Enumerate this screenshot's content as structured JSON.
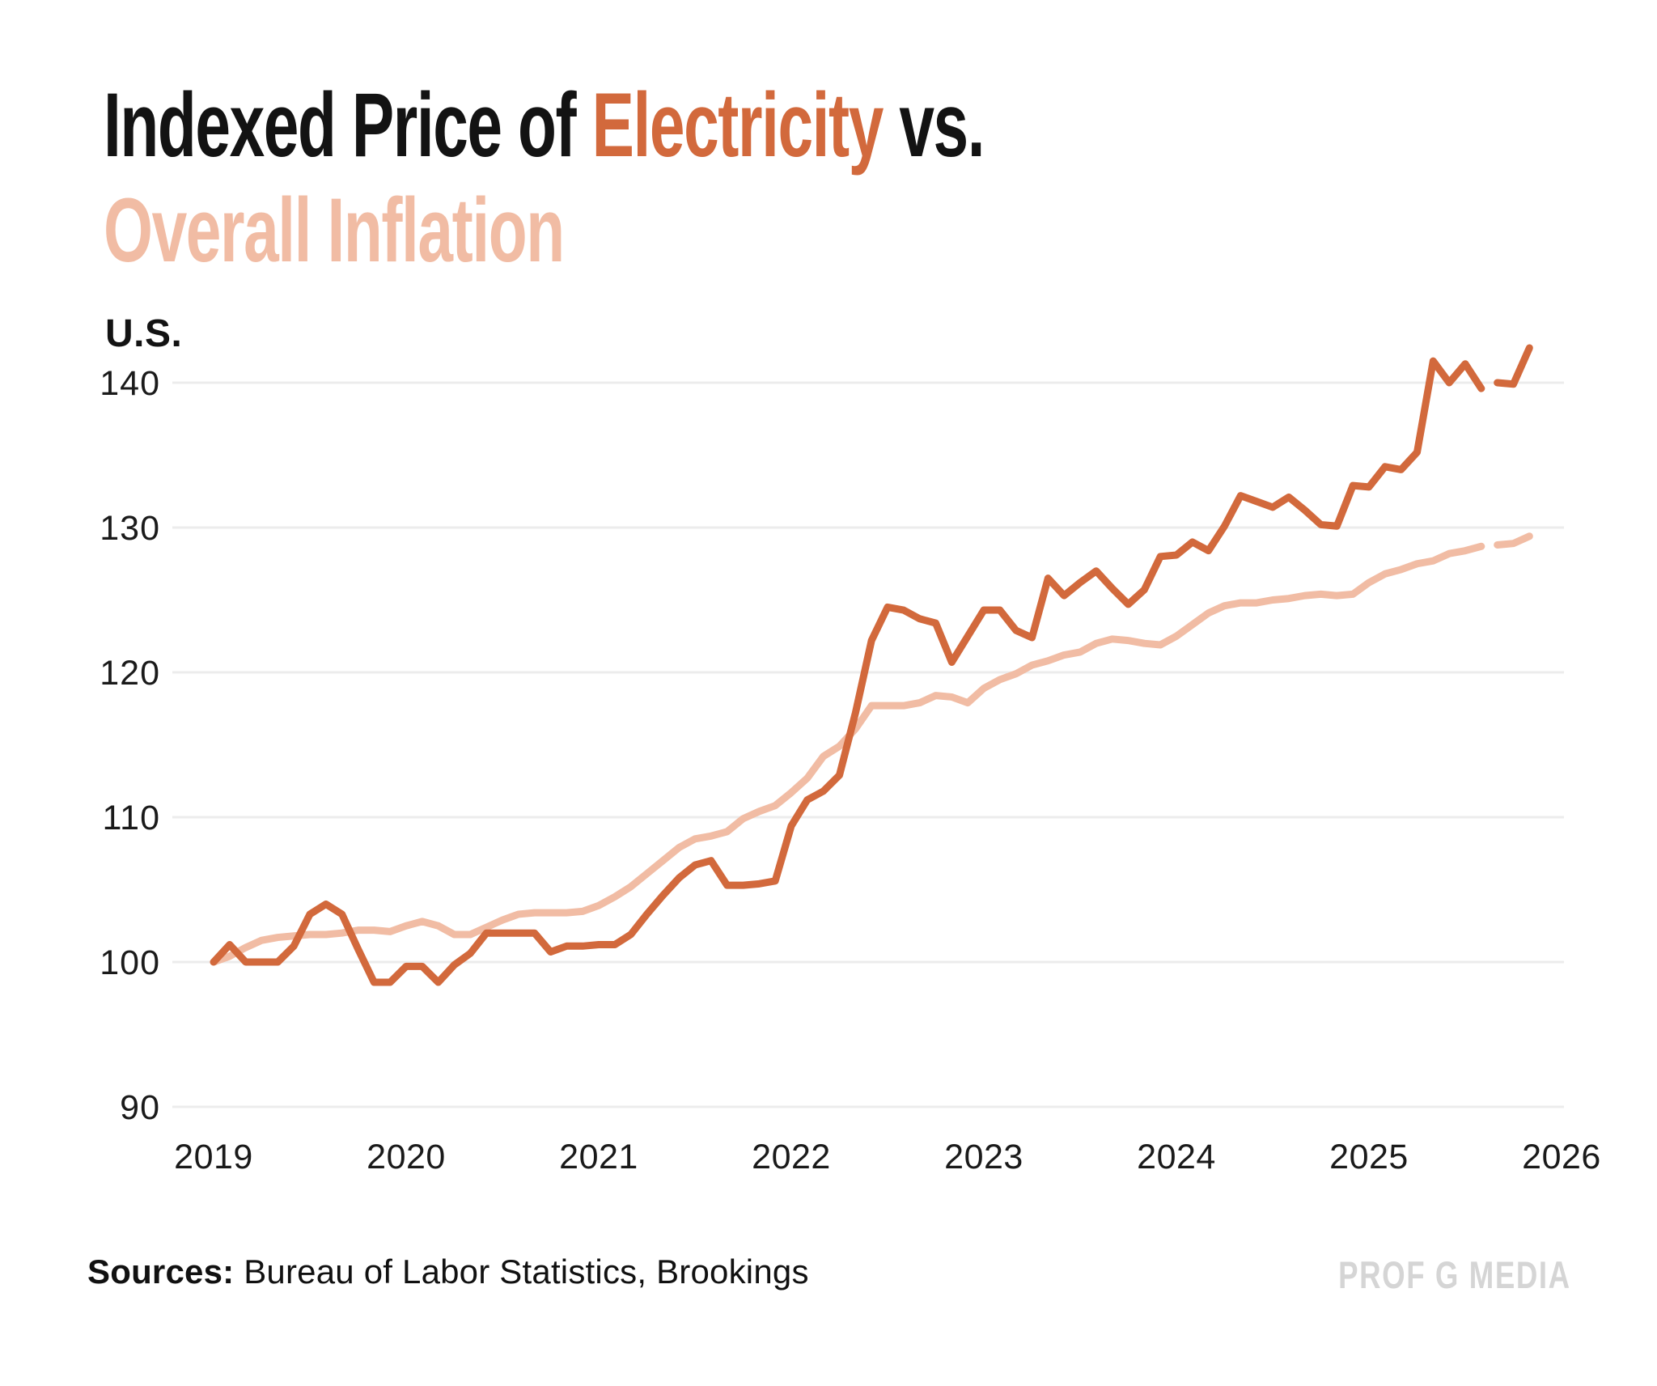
{
  "title": {
    "line1_prefix": "Indexed Price of ",
    "line1_highlight": "Electricity",
    "line1_suffix": " vs.",
    "line2": "Overall Inflation"
  },
  "region_label": "U.S.",
  "source_note": {
    "label": "Sources:",
    "text": " Bureau of Labor Statistics, Brookings"
  },
  "watermark": "PROF G MEDIA",
  "colors": {
    "electricity": "#d2693c",
    "inflation": "#f1bca4",
    "grid": "#ececec",
    "text": "#1a1a1a",
    "watermark": "#d5d5d5"
  },
  "chart_data": {
    "type": "line",
    "title": "Indexed Price of Electricity vs. Overall Inflation",
    "region": "U.S.",
    "grid": true,
    "legend_position": "none (color-coded title)",
    "x_axis": {
      "tick_labels": [
        "2019",
        "2020",
        "2021",
        "2022",
        "2023",
        "2024",
        "2025",
        "2026"
      ],
      "start": "2019-01",
      "frequency": "monthly"
    },
    "y_axis": {
      "ticks": [
        90,
        100,
        110,
        120,
        130,
        140
      ],
      "range": [
        87,
        145
      ]
    },
    "series": [
      {
        "name": "Overall Inflation",
        "color": "#f1bca4",
        "values": [
          100.0,
          100.4,
          101.0,
          101.5,
          101.7,
          101.8,
          101.9,
          101.9,
          102.0,
          102.2,
          102.2,
          102.1,
          102.5,
          102.8,
          102.5,
          101.9,
          101.9,
          102.4,
          102.9,
          103.3,
          103.4,
          103.4,
          103.4,
          103.5,
          103.9,
          104.5,
          105.2,
          106.1,
          107.0,
          107.9,
          108.5,
          108.7,
          109.0,
          109.9,
          110.4,
          110.8,
          111.7,
          112.7,
          114.2,
          114.9,
          116.1,
          117.7,
          117.7,
          117.7,
          117.9,
          118.4,
          118.3,
          117.9,
          118.9,
          119.5,
          119.9,
          120.5,
          120.8,
          121.2,
          121.4,
          122.0,
          122.3,
          122.2,
          122.0,
          121.9,
          122.5,
          123.3,
          124.1,
          124.6,
          124.8,
          124.8,
          125.0,
          125.1,
          125.3,
          125.4,
          125.3,
          125.4,
          126.2,
          126.8,
          127.1,
          127.5,
          127.7,
          128.2,
          128.4,
          128.7
        ],
        "detached_tail_values": [
          128.8,
          128.9,
          129.4
        ]
      },
      {
        "name": "Electricity",
        "color": "#d2693c",
        "values": [
          100.0,
          101.2,
          100.0,
          100.0,
          100.0,
          101.1,
          103.3,
          104.0,
          103.3,
          100.9,
          98.6,
          98.6,
          99.7,
          99.7,
          98.6,
          99.8,
          100.6,
          102.0,
          102.0,
          102.0,
          102.0,
          100.7,
          101.1,
          101.1,
          101.2,
          101.2,
          101.9,
          103.3,
          104.6,
          105.8,
          106.7,
          107.0,
          105.3,
          105.3,
          105.4,
          105.6,
          109.4,
          111.2,
          111.8,
          112.9,
          117.2,
          122.2,
          124.5,
          124.3,
          123.7,
          123.4,
          120.7,
          122.5,
          124.3,
          124.3,
          122.9,
          122.4,
          126.5,
          125.3,
          126.2,
          127.0,
          125.8,
          124.7,
          125.7,
          128.0,
          128.1,
          129.0,
          128.4,
          130.1,
          132.2,
          131.8,
          131.4,
          132.1,
          131.2,
          130.2,
          130.1,
          132.9,
          132.8,
          134.2,
          134.0,
          135.2,
          141.5,
          140.0,
          141.3,
          139.6
        ],
        "detached_tail_values": [
          140.0,
          139.9,
          142.4
        ]
      }
    ]
  }
}
